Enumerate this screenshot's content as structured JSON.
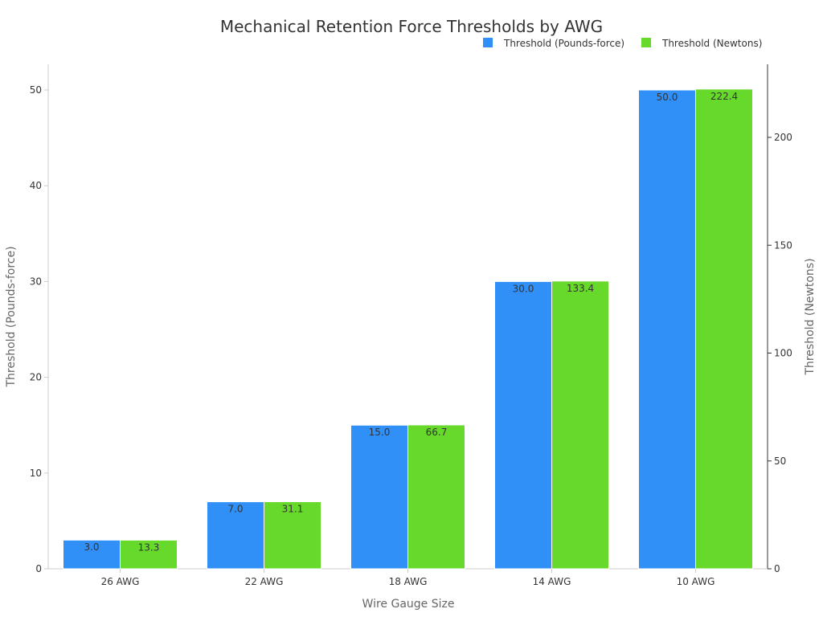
{
  "chart_data": {
    "type": "bar",
    "title": "Mechanical Retention Force Thresholds by AWG",
    "xlabel": "Wire Gauge Size",
    "ylabel": "Threshold (Pounds-force)",
    "y2label": "Threshold (Newtons)",
    "categories": [
      "26 AWG",
      "22 AWG",
      "18 AWG",
      "14 AWG",
      "10 AWG"
    ],
    "series": [
      {
        "name": "Threshold (Pounds-force)",
        "axis": "left",
        "color": "#3090f8",
        "values": [
          3.0,
          7.0,
          15.0,
          30.0,
          50.0
        ],
        "labels": [
          "3.0",
          "7.0",
          "15.0",
          "30.0",
          "50.0"
        ]
      },
      {
        "name": "Threshold (Newtons)",
        "axis": "right",
        "color": "#66d92a",
        "values": [
          13.3,
          31.1,
          66.7,
          133.4,
          222.4
        ],
        "labels": [
          "13.3",
          "31.1",
          "66.7",
          "133.4",
          "222.4"
        ]
      }
    ],
    "ylim": [
      0,
      52.5
    ],
    "y2lim": [
      0,
      233.5
    ],
    "yticks": [
      0,
      10,
      20,
      30,
      40,
      50
    ],
    "y2ticks": [
      0,
      50,
      100,
      150,
      200
    ],
    "legend_position": "top-right",
    "grid": false
  }
}
